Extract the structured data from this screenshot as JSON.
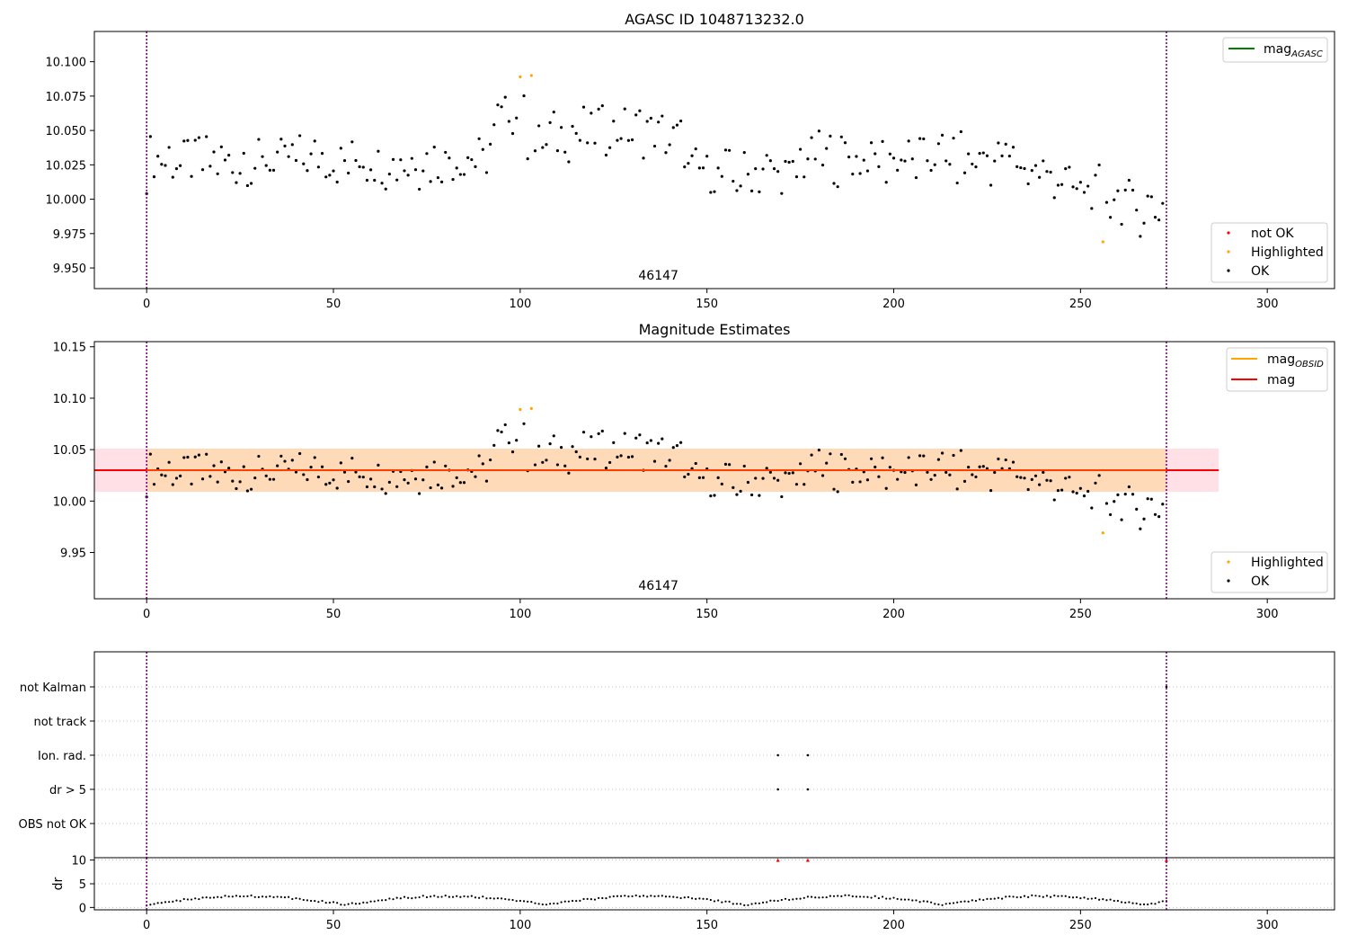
{
  "colors": {
    "ok": "#000000",
    "highlighted": "#ffa500",
    "not_ok": "#ff0000",
    "agasc_line": "#008000",
    "obsid_line": "#ffa500",
    "mag_line": "#ff0000",
    "band_orange": "#ffdab9",
    "band_pink": "#ffe0e6",
    "vline": "#800080",
    "grid": "#b0b0b0"
  },
  "chart_data": [
    {
      "id": "agasc",
      "type": "scatter",
      "title": "AGASC ID 1048713232.0",
      "annotation": "46147",
      "annotation_x": 137,
      "xlim": [
        -14,
        318
      ],
      "ylim": [
        9.935,
        10.122
      ],
      "xticks": [
        0,
        50,
        100,
        150,
        200,
        250,
        300
      ],
      "yticks": [
        9.95,
        9.975,
        10.0,
        10.025,
        10.05,
        10.075,
        10.1
      ],
      "ytick_labels": [
        "9.950",
        "9.975",
        "10.000",
        "10.025",
        "10.050",
        "10.075",
        "10.100"
      ],
      "obs_bounds": [
        0,
        273
      ],
      "legend_top": [
        {
          "label": "mag",
          "sub": "AGASC",
          "kind": "line",
          "color": "#008000"
        }
      ],
      "legend_bottom": [
        {
          "label": "not OK",
          "kind": "dot",
          "color": "#ff0000"
        },
        {
          "label": "Highlighted",
          "kind": "dot",
          "color": "#ffa500"
        },
        {
          "label": "OK",
          "kind": "dot",
          "color": "#000000"
        }
      ]
    },
    {
      "id": "estimates",
      "type": "scatter",
      "title": "Magnitude Estimates",
      "annotation": "46147",
      "annotation_x": 137,
      "xlim": [
        -14,
        318
      ],
      "ylim": [
        9.905,
        10.155
      ],
      "xticks": [
        0,
        50,
        100,
        150,
        200,
        250,
        300
      ],
      "yticks": [
        9.95,
        10.0,
        10.05,
        10.1,
        10.15
      ],
      "ytick_labels": [
        "9.95",
        "10.00",
        "10.05",
        "10.10",
        "10.15"
      ],
      "obs_bounds": [
        0,
        273
      ],
      "mag": 10.03,
      "mag_band": [
        10.009,
        10.051
      ],
      "band_x_end": 287,
      "legend_top": [
        {
          "label": "mag",
          "sub": "OBSID",
          "kind": "line",
          "color": "#ffa500"
        },
        {
          "label": "mag",
          "sub": "",
          "kind": "line",
          "color": "#ff0000"
        }
      ],
      "legend_bottom": [
        {
          "label": "Highlighted",
          "kind": "dot",
          "color": "#ffa500"
        },
        {
          "label": "OK",
          "kind": "dot",
          "color": "#000000"
        }
      ]
    },
    {
      "id": "flags",
      "type": "scatter",
      "xlim": [
        -14,
        318
      ],
      "categories": [
        "OBS not OK",
        "dr > 5",
        "Ion. rad.",
        "not track",
        "not Kalman"
      ],
      "obs_bounds": [
        0,
        273
      ],
      "flag_points": [
        {
          "category": "Ion. rad.",
          "x": [
            169,
            177
          ]
        },
        {
          "category": "dr > 5",
          "x": [
            169,
            177
          ]
        },
        {
          "category": "not Kalman",
          "x": [
            273
          ]
        }
      ]
    },
    {
      "id": "dr",
      "type": "scatter",
      "ylabel": "dr",
      "xlim": [
        -14,
        318
      ],
      "ylim": [
        -0.5,
        10.5
      ],
      "yticks": [
        0,
        5,
        10
      ],
      "ytick_labels": [
        "0",
        "5",
        "10"
      ],
      "xticks": [
        0,
        50,
        100,
        150,
        200,
        250,
        300
      ],
      "obs_bounds": [
        0,
        273
      ],
      "clipped_x": [
        169,
        177,
        273
      ]
    }
  ]
}
